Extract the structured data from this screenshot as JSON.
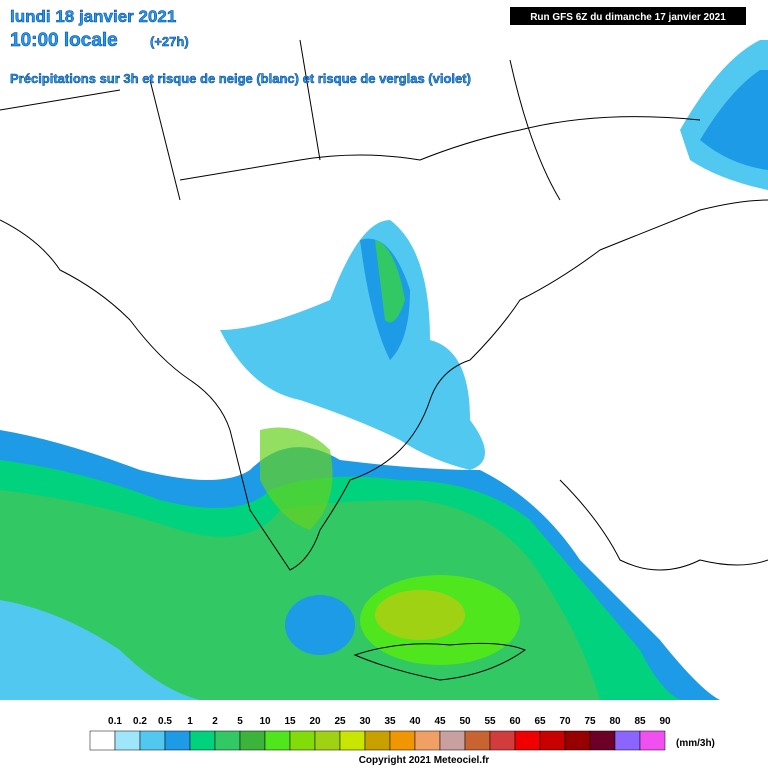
{
  "header": {
    "date": "lundi 18 janvier 2021",
    "time": "10:00 locale",
    "lead": "(+27h)",
    "subtitle": "Précipitations sur 3h et risque de neige (blanc) et risque de verglas (violet)",
    "run": "Run GFS 6Z du dimanche 17 janvier 2021"
  },
  "legend": {
    "levels": [
      "0.1",
      "0.2",
      "0.5",
      "1",
      "2",
      "5",
      "10",
      "15",
      "20",
      "25",
      "30",
      "35",
      "40",
      "45",
      "50",
      "55",
      "60",
      "65",
      "70",
      "75",
      "80",
      "85",
      "90"
    ],
    "colors": [
      "#ffffff",
      "#a0e6fa",
      "#50c8f0",
      "#1e9be6",
      "#00d27d",
      "#32c864",
      "#3cb43c",
      "#50e61e",
      "#82dc0a",
      "#a0d214",
      "#c8e600",
      "#c8a000",
      "#f09600",
      "#f0a064",
      "#c8a0a0",
      "#c86432",
      "#d23c3c",
      "#f00000",
      "#c80000",
      "#960000",
      "#6e0028",
      "#8c64ff",
      "#f050f0"
    ],
    "unit": "(mm/3h)"
  },
  "copyright": "Copyright 2021 Meteociel.fr"
}
